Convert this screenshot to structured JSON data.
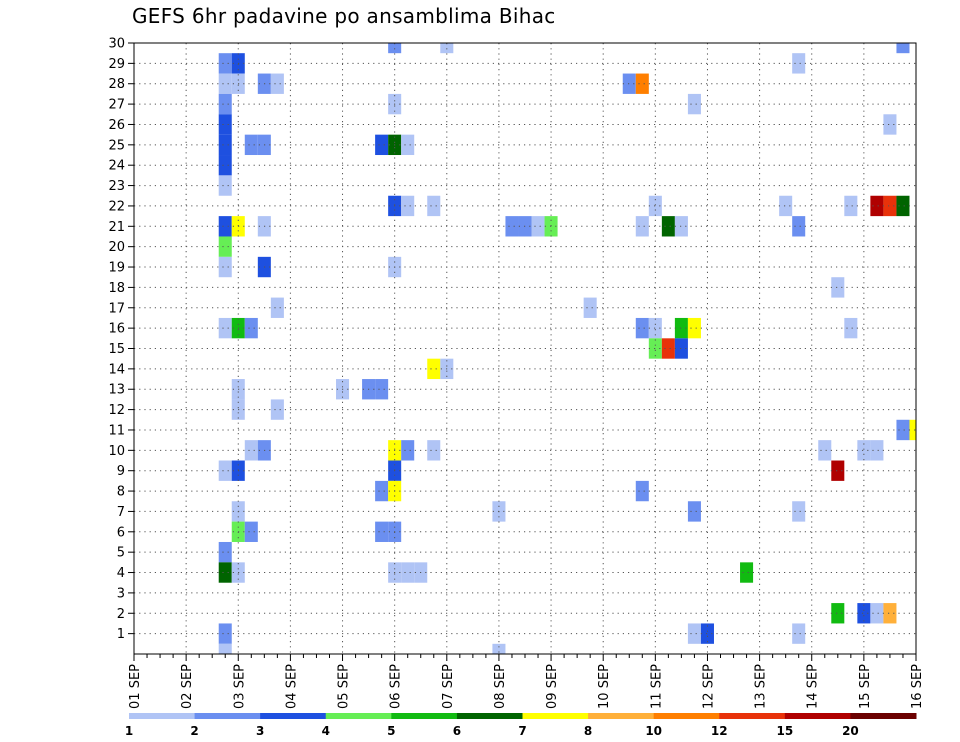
{
  "chart_data": {
    "type": "heatmap",
    "title": "GEFS 6hr padavine po ansamblima Bihac",
    "xlabel": "",
    "ylabel": "",
    "x_tick_labels": [
      "01 SEP",
      "02 SEP",
      "03 SEP",
      "04 SEP",
      "05 SEP",
      "06 SEP",
      "07 SEP",
      "08 SEP",
      "09 SEP",
      "10 SEP",
      "11 SEP",
      "12 SEP",
      "13 SEP",
      "14 SEP",
      "15 SEP",
      "16 SEP"
    ],
    "y_tick_labels": [
      "1",
      "2",
      "3",
      "4",
      "5",
      "6",
      "7",
      "8",
      "9",
      "10",
      "11",
      "12",
      "13",
      "14",
      "15",
      "16",
      "17",
      "18",
      "19",
      "20",
      "21",
      "22",
      "23",
      "24",
      "25",
      "26",
      "27",
      "28",
      "29",
      "30"
    ],
    "xlim": [
      0,
      60
    ],
    "ylim": [
      0,
      30
    ],
    "grid": true,
    "legend_position": "bottom",
    "color_levels": [
      {
        "color": "#b0c4f5"
      },
      {
        "color": "#6b8ff0",
        "label": "2"
      },
      {
        "color": "#1e50e0",
        "label": "3"
      },
      {
        "color": "#66ee55",
        "label": "4"
      },
      {
        "color": "#11bb11",
        "label": "5"
      },
      {
        "color": "#006400",
        "label": "6"
      },
      {
        "color": "#ffff00",
        "label": "7"
      },
      {
        "color": "#ffb03a",
        "label": "8"
      },
      {
        "color": "#ff7f00",
        "label": "10"
      },
      {
        "color": "#e8320a",
        "label": "12"
      },
      {
        "color": "#b00000",
        "label": "15"
      },
      {
        "color": "#6b0000",
        "label": "20"
      }
    ],
    "legend_first_label": "1",
    "cells": [
      {
        "member": 30,
        "step": 20,
        "level": 1
      },
      {
        "member": 30,
        "step": 24,
        "level": 0
      },
      {
        "member": 30,
        "step": 59,
        "level": 1
      },
      {
        "member": 29,
        "step": 7,
        "level": 1
      },
      {
        "member": 29,
        "step": 8,
        "level": 2
      },
      {
        "member": 29,
        "step": 51,
        "level": 0
      },
      {
        "member": 28,
        "step": 7,
        "level": 0
      },
      {
        "member": 28,
        "step": 8,
        "level": 0
      },
      {
        "member": 28,
        "step": 10,
        "level": 1
      },
      {
        "member": 28,
        "step": 11,
        "level": 0
      },
      {
        "member": 28,
        "step": 38,
        "level": 1
      },
      {
        "member": 28,
        "step": 39,
        "level": 8
      },
      {
        "member": 27,
        "step": 7,
        "level": 1
      },
      {
        "member": 27,
        "step": 20,
        "level": 0
      },
      {
        "member": 27,
        "step": 43,
        "level": 0
      },
      {
        "member": 26,
        "step": 7,
        "level": 2
      },
      {
        "member": 26,
        "step": 58,
        "level": 0
      },
      {
        "member": 25,
        "step": 7,
        "level": 2
      },
      {
        "member": 25,
        "step": 9,
        "level": 1
      },
      {
        "member": 25,
        "step": 10,
        "level": 1
      },
      {
        "member": 25,
        "step": 19,
        "level": 2
      },
      {
        "member": 25,
        "step": 20,
        "level": 5
      },
      {
        "member": 25,
        "step": 21,
        "level": 0
      },
      {
        "member": 24,
        "step": 7,
        "level": 2
      },
      {
        "member": 23,
        "step": 7,
        "level": 0
      },
      {
        "member": 22,
        "step": 20,
        "level": 2
      },
      {
        "member": 22,
        "step": 21,
        "level": 0
      },
      {
        "member": 22,
        "step": 23,
        "level": 0
      },
      {
        "member": 22,
        "step": 40,
        "level": 0
      },
      {
        "member": 22,
        "step": 50,
        "level": 0
      },
      {
        "member": 22,
        "step": 55,
        "level": 0
      },
      {
        "member": 22,
        "step": 57,
        "level": 10
      },
      {
        "member": 22,
        "step": 58,
        "level": 9
      },
      {
        "member": 22,
        "step": 59,
        "level": 5
      },
      {
        "member": 21,
        "step": 7,
        "level": 2
      },
      {
        "member": 21,
        "step": 8,
        "level": 6
      },
      {
        "member": 21,
        "step": 10,
        "level": 0
      },
      {
        "member": 21,
        "step": 29,
        "level": 1
      },
      {
        "member": 21,
        "step": 30,
        "level": 1
      },
      {
        "member": 21,
        "step": 31,
        "level": 0
      },
      {
        "member": 21,
        "step": 32,
        "level": 3
      },
      {
        "member": 21,
        "step": 39,
        "level": 0
      },
      {
        "member": 21,
        "step": 41,
        "level": 5
      },
      {
        "member": 21,
        "step": 42,
        "level": 0
      },
      {
        "member": 21,
        "step": 51,
        "level": 1
      },
      {
        "member": 20,
        "step": 7,
        "level": 3
      },
      {
        "member": 19,
        "step": 7,
        "level": 0
      },
      {
        "member": 19,
        "step": 10,
        "level": 2
      },
      {
        "member": 19,
        "step": 20,
        "level": 0
      },
      {
        "member": 18,
        "step": 54,
        "level": 0
      },
      {
        "member": 17,
        "step": 11,
        "level": 0
      },
      {
        "member": 17,
        "step": 35,
        "level": 0
      },
      {
        "member": 16,
        "step": 7,
        "level": 0
      },
      {
        "member": 16,
        "step": 8,
        "level": 4
      },
      {
        "member": 16,
        "step": 9,
        "level": 1
      },
      {
        "member": 16,
        "step": 39,
        "level": 1
      },
      {
        "member": 16,
        "step": 40,
        "level": 0
      },
      {
        "member": 16,
        "step": 42,
        "level": 4
      },
      {
        "member": 16,
        "step": 43,
        "level": 6
      },
      {
        "member": 16,
        "step": 55,
        "level": 0
      },
      {
        "member": 15,
        "step": 40,
        "level": 3
      },
      {
        "member": 15,
        "step": 41,
        "level": 9
      },
      {
        "member": 15,
        "step": 42,
        "level": 2
      },
      {
        "member": 14,
        "step": 23,
        "level": 6
      },
      {
        "member": 14,
        "step": 24,
        "level": 0
      },
      {
        "member": 13,
        "step": 8,
        "level": 0
      },
      {
        "member": 13,
        "step": 16,
        "level": 0
      },
      {
        "member": 13,
        "step": 18,
        "level": 1
      },
      {
        "member": 13,
        "step": 19,
        "level": 1
      },
      {
        "member": 12,
        "step": 8,
        "level": 0
      },
      {
        "member": 12,
        "step": 11,
        "level": 0
      },
      {
        "member": 11,
        "step": 59,
        "level": 1
      },
      {
        "member": 11,
        "step": 60,
        "level": 6
      },
      {
        "member": 10,
        "step": 9,
        "level": 0
      },
      {
        "member": 10,
        "step": 10,
        "level": 1
      },
      {
        "member": 10,
        "step": 20,
        "level": 6
      },
      {
        "member": 10,
        "step": 21,
        "level": 1
      },
      {
        "member": 10,
        "step": 23,
        "level": 0
      },
      {
        "member": 10,
        "step": 53,
        "level": 0
      },
      {
        "member": 10,
        "step": 56,
        "level": 0
      },
      {
        "member": 10,
        "step": 57,
        "level": 0
      },
      {
        "member": 9,
        "step": 7,
        "level": 0
      },
      {
        "member": 9,
        "step": 8,
        "level": 2
      },
      {
        "member": 9,
        "step": 20,
        "level": 2
      },
      {
        "member": 9,
        "step": 54,
        "level": 10
      },
      {
        "member": 8,
        "step": 19,
        "level": 1
      },
      {
        "member": 8,
        "step": 20,
        "level": 6
      },
      {
        "member": 8,
        "step": 39,
        "level": 1
      },
      {
        "member": 7,
        "step": 8,
        "level": 0
      },
      {
        "member": 7,
        "step": 28,
        "level": 0
      },
      {
        "member": 7,
        "step": 43,
        "level": 1
      },
      {
        "member": 7,
        "step": 51,
        "level": 0
      },
      {
        "member": 6,
        "step": 8,
        "level": 3
      },
      {
        "member": 6,
        "step": 9,
        "level": 1
      },
      {
        "member": 6,
        "step": 19,
        "level": 1
      },
      {
        "member": 6,
        "step": 20,
        "level": 1
      },
      {
        "member": 5,
        "step": 7,
        "level": 1
      },
      {
        "member": 4,
        "step": 7,
        "level": 5
      },
      {
        "member": 4,
        "step": 8,
        "level": 0
      },
      {
        "member": 4,
        "step": 20,
        "level": 0
      },
      {
        "member": 4,
        "step": 21,
        "level": 0
      },
      {
        "member": 4,
        "step": 22,
        "level": 0
      },
      {
        "member": 4,
        "step": 47,
        "level": 4
      },
      {
        "member": 2,
        "step": 54,
        "level": 4
      },
      {
        "member": 2,
        "step": 56,
        "level": 2
      },
      {
        "member": 2,
        "step": 57,
        "level": 0
      },
      {
        "member": 2,
        "step": 58,
        "level": 7
      },
      {
        "member": 1,
        "step": 7,
        "level": 1
      },
      {
        "member": 1,
        "step": 43,
        "level": 0
      },
      {
        "member": 1,
        "step": 44,
        "level": 2
      },
      {
        "member": 1,
        "step": 51,
        "level": 0
      },
      {
        "member": 0,
        "step": 7,
        "level": 0
      },
      {
        "member": 0,
        "step": 28,
        "level": 0
      }
    ]
  }
}
